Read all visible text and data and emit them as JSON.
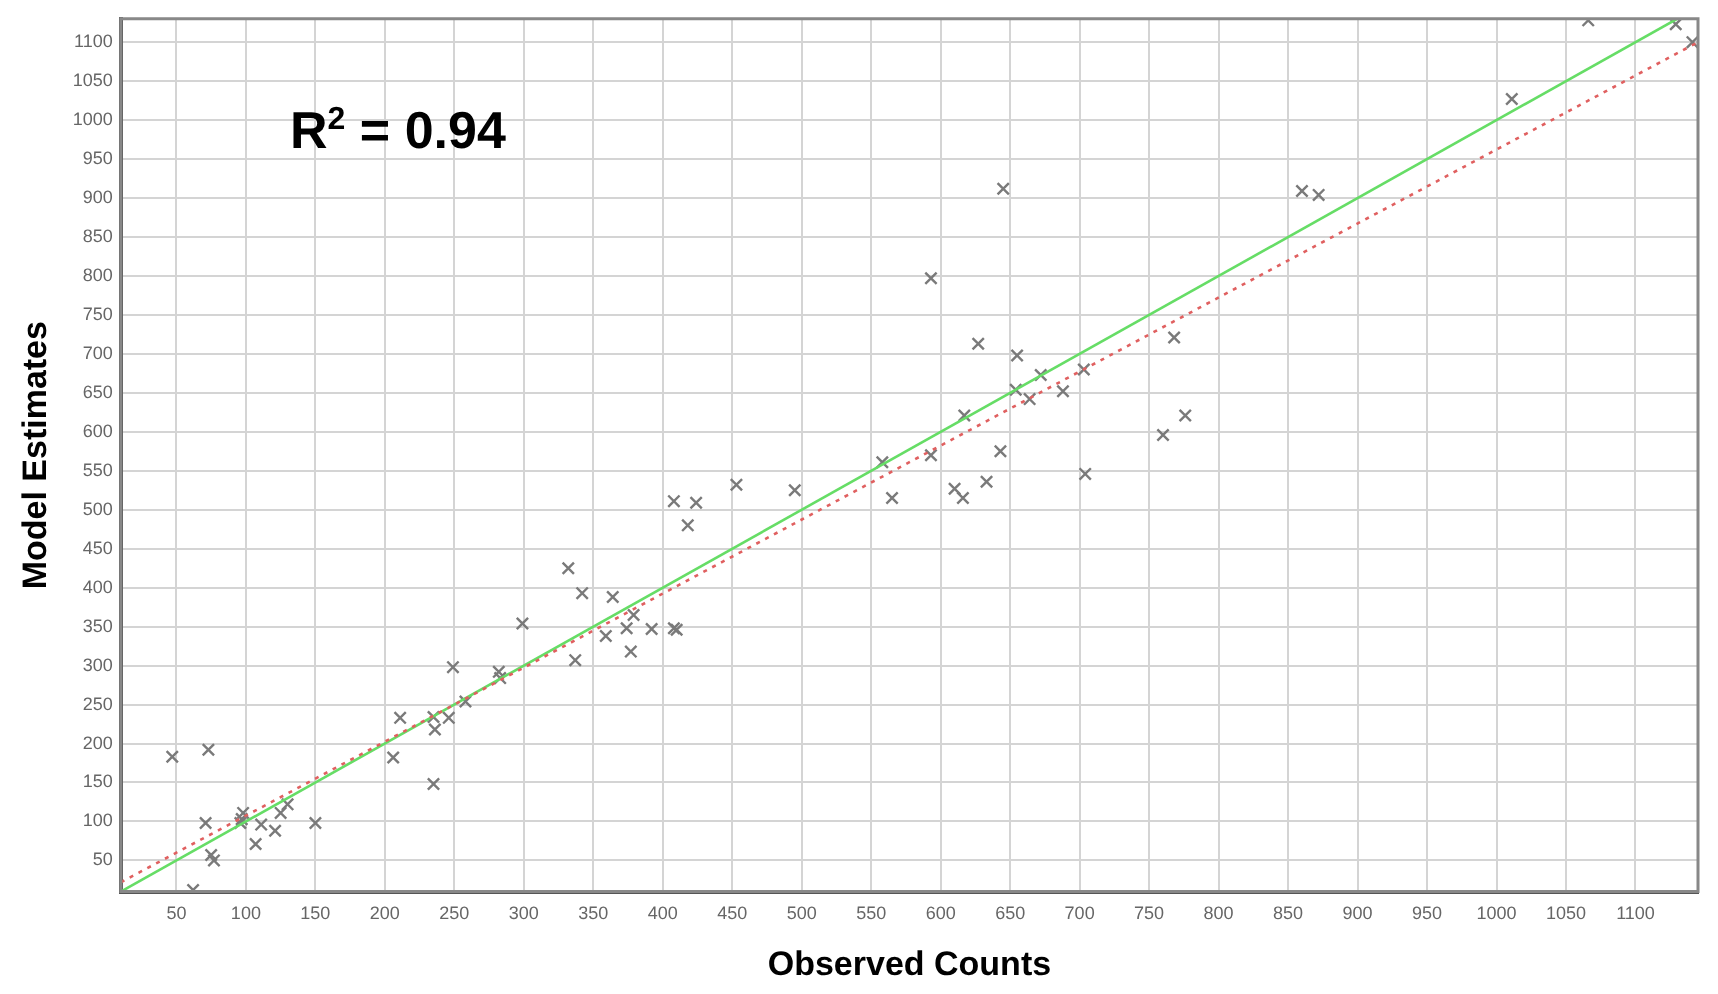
{
  "chart_data": {
    "type": "scatter",
    "xlabel": "Observed Counts",
    "ylabel": "Model Estimates",
    "annotations": [
      "R$^{2}$ = 0.94"
    ],
    "xlim": [
      10,
      1145
    ],
    "ylim": [
      10,
      1130
    ],
    "xticks": [
      50,
      100,
      150,
      200,
      250,
      300,
      350,
      400,
      450,
      500,
      550,
      600,
      650,
      700,
      750,
      800,
      850,
      900,
      950,
      1000,
      1050,
      1100
    ],
    "yticks": [
      50,
      100,
      150,
      200,
      250,
      300,
      350,
      400,
      450,
      500,
      550,
      600,
      650,
      700,
      750,
      800,
      850,
      900,
      950,
      1000,
      1050,
      1100
    ],
    "grid": true,
    "legend": false,
    "marker": "cross",
    "series": [
      {
        "type": "scatter",
        "color": "#7a7a7a",
        "x": [
          47,
          73,
          71,
          75,
          77,
          62,
          98,
          96,
          97,
          111,
          107,
          121,
          125,
          130,
          150,
          206,
          211,
          235,
          236,
          235,
          246,
          249,
          258,
          282,
          283,
          299,
          332,
          337,
          342,
          359,
          364,
          374,
          379,
          377,
          392,
          408,
          410,
          408,
          424,
          418,
          453,
          495,
          558,
          565,
          593,
          593,
          610,
          616,
          617,
          627,
          633,
          643,
          645,
          654,
          655,
          664,
          672,
          688,
          703,
          704,
          760,
          768,
          776,
          860,
          872,
          1011,
          1066,
          1129,
          1141
        ],
        "values": [
          183,
          192,
          98,
          57,
          50,
          12,
          111,
          98,
          103,
          96,
          71,
          88,
          111,
          122,
          98,
          182,
          233,
          148,
          218,
          234,
          233,
          298,
          254,
          292,
          284,
          354,
          425,
          307,
          393,
          338,
          388,
          348,
          365,
          318,
          347,
          348,
          346,
          511,
          509,
          480,
          532,
          525,
          561,
          515,
          797,
          570,
          527,
          515,
          621,
          713,
          536,
          575,
          912,
          654,
          698,
          642,
          673,
          652,
          680,
          546,
          596,
          721,
          621,
          909,
          904,
          1027,
          1128,
          1123,
          1100
        ]
      },
      {
        "type": "line",
        "color": "#66dd66",
        "marker": "none",
        "line_style": "solid",
        "x": [
          10,
          1130
        ],
        "values": [
          10,
          1130
        ]
      },
      {
        "type": "line",
        "color": "#e06060",
        "marker": "none",
        "line_style": "dotted",
        "x": [
          10,
          1145
        ],
        "values": [
          22,
          1100
        ]
      }
    ]
  }
}
